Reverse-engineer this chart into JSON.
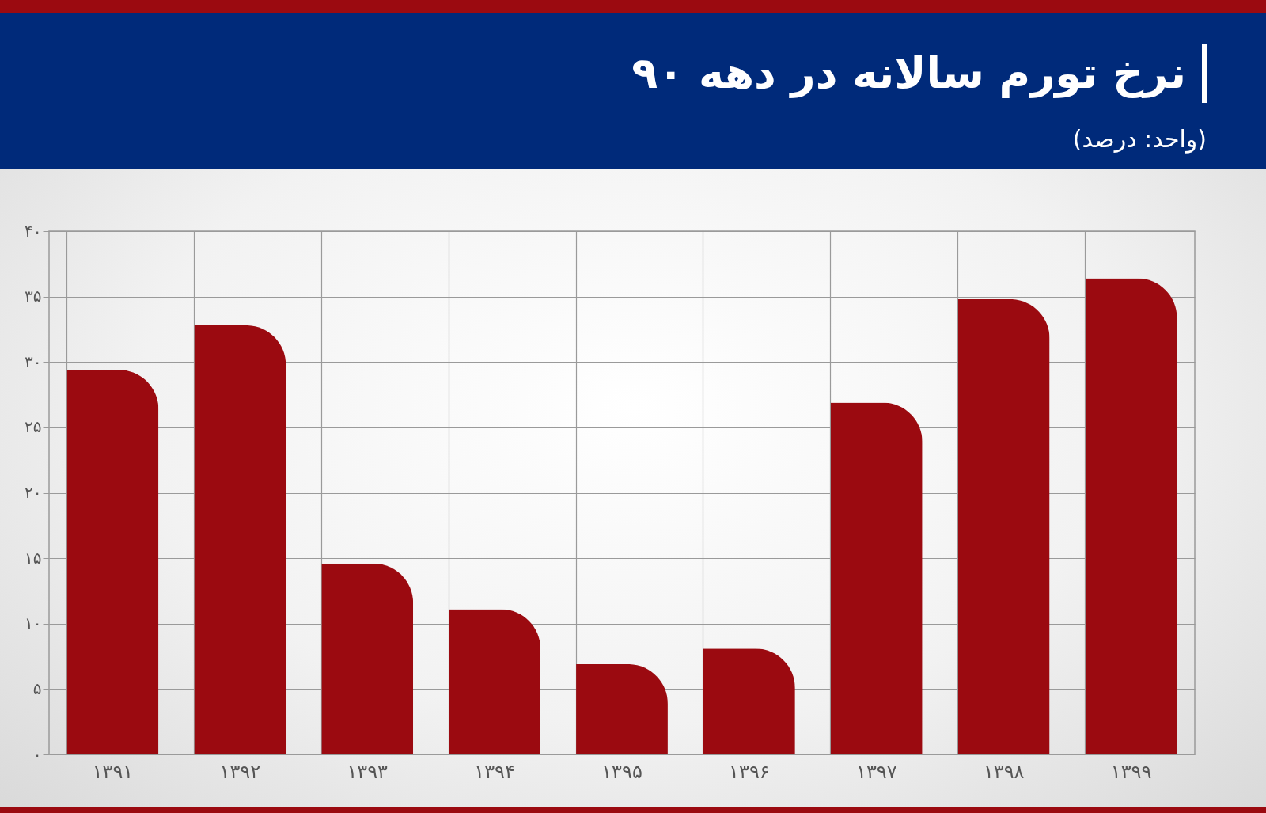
{
  "chart_data": {
    "type": "bar",
    "title": "نرخ تورم سالانه در دهه ۹۰",
    "subtitle": "(واحد: درصد)",
    "categories": [
      "۱۳۹۱",
      "۱۳۹۲",
      "۱۳۹۳",
      "۱۳۹۴",
      "۱۳۹۵",
      "۱۳۹۶",
      "۱۳۹۷",
      "۱۳۹۸",
      "۱۳۹۹"
    ],
    "values": [
      29.4,
      32.8,
      14.6,
      11.1,
      6.9,
      8.1,
      26.9,
      34.8,
      36.4
    ],
    "color": "#9b0a10",
    "ylim": [
      0,
      40
    ],
    "yticks": [
      {
        "value": 0,
        "label": "۰"
      },
      {
        "value": 5,
        "label": "۵"
      },
      {
        "value": 10,
        "label": "۱۰"
      },
      {
        "value": 15,
        "label": "۱۵"
      },
      {
        "value": 20,
        "label": "۲۰"
      },
      {
        "value": 25,
        "label": "۲۵"
      },
      {
        "value": 30,
        "label": "۳۰"
      },
      {
        "value": 35,
        "label": "۳۵"
      },
      {
        "value": 40,
        "label": "۴۰"
      }
    ],
    "grid": true
  }
}
